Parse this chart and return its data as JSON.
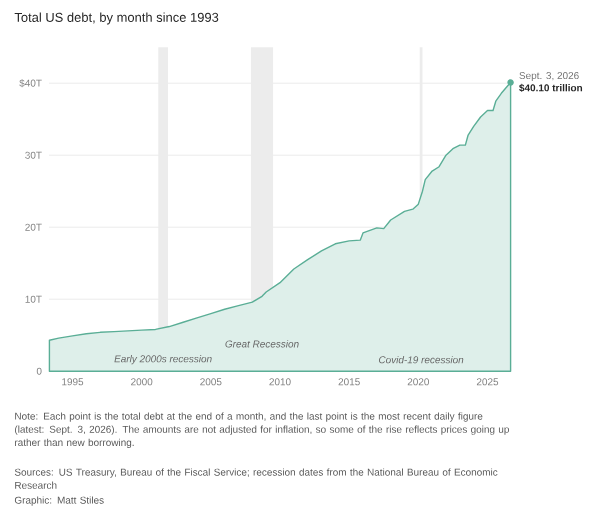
{
  "chart_data": {
    "type": "area",
    "title": "Total US debt, by month since 1993",
    "x": [
      1993.33,
      1994,
      1995,
      1996,
      1997,
      1998,
      1999,
      2000,
      2001,
      2002,
      2003,
      2004,
      2005,
      2006,
      2007,
      2008,
      2008.7,
      2009,
      2010,
      2011,
      2012,
      2013,
      2014,
      2015,
      2015.8,
      2016,
      2017,
      2017.5,
      2018,
      2019,
      2019.6,
      2020,
      2020.3,
      2020.5,
      2021,
      2021.5,
      2022,
      2022.5,
      2023,
      2023.4,
      2023.6,
      2024,
      2024.5,
      2025,
      2025.4,
      2025.6,
      2026,
      2026.67
    ],
    "series": [
      {
        "color": "#5aae96",
        "values": [
          4.3,
          4.6,
          4.9,
          5.2,
          5.4,
          5.5,
          5.6,
          5.7,
          5.8,
          6.2,
          6.8,
          7.4,
          8.0,
          8.6,
          9.1,
          9.6,
          10.4,
          11.0,
          12.3,
          14.2,
          15.5,
          16.7,
          17.7,
          18.1,
          18.2,
          19.2,
          19.9,
          19.8,
          21.0,
          22.2,
          22.5,
          23.2,
          25.0,
          26.6,
          27.8,
          28.4,
          30.0,
          30.9,
          31.4,
          31.4,
          32.8,
          34.0,
          35.3,
          36.2,
          36.2,
          37.5,
          38.6,
          40.1
        ]
      }
    ],
    "xlim": [
      1993.3,
      2026.7
    ],
    "ylim": [
      0,
      45
    ],
    "xticks": [
      1995,
      2000,
      2005,
      2010,
      2015,
      2020,
      2025
    ],
    "yticks": [
      0,
      {
        "value": 10,
        "label": "10T"
      },
      {
        "value": 20,
        "label": "20T"
      },
      {
        "value": 30,
        "label": "30T"
      },
      {
        "value": 40,
        "label": "$40T"
      }
    ],
    "grid": "y",
    "bands": [
      {
        "axis": "x",
        "from": 2001.2,
        "to": 2001.9,
        "label": "Early 2000s recession",
        "color": "#ececec"
      },
      {
        "axis": "x",
        "from": 2007.9,
        "to": 2009.5,
        "label": "Great Recession",
        "color": "#ececec"
      },
      {
        "axis": "x",
        "from": 2020.1,
        "to": 2020.3,
        "label": "Covid-19 recession",
        "color": "#ececec"
      }
    ],
    "annotations": [
      {
        "text": "Sept. 3, 2026",
        "x": 2026.67,
        "y": 40.1
      },
      {
        "text": "$40.10 trillion",
        "x": 2026.67,
        "y": 40.1
      },
      "Note: Each point is the total debt at the end of a month, and the last point is the most recent daily figure (latest: Sept. 3, 2026). The amounts are not adjusted for inflation, so some of the rise reflects prices going up rather than new borrowing.",
      "Sources: US Treasury, Bureau of the Fiscal Service; recession dates from the National Bureau of Economic Research",
      "Graphic: Matt Stiles"
    ]
  }
}
